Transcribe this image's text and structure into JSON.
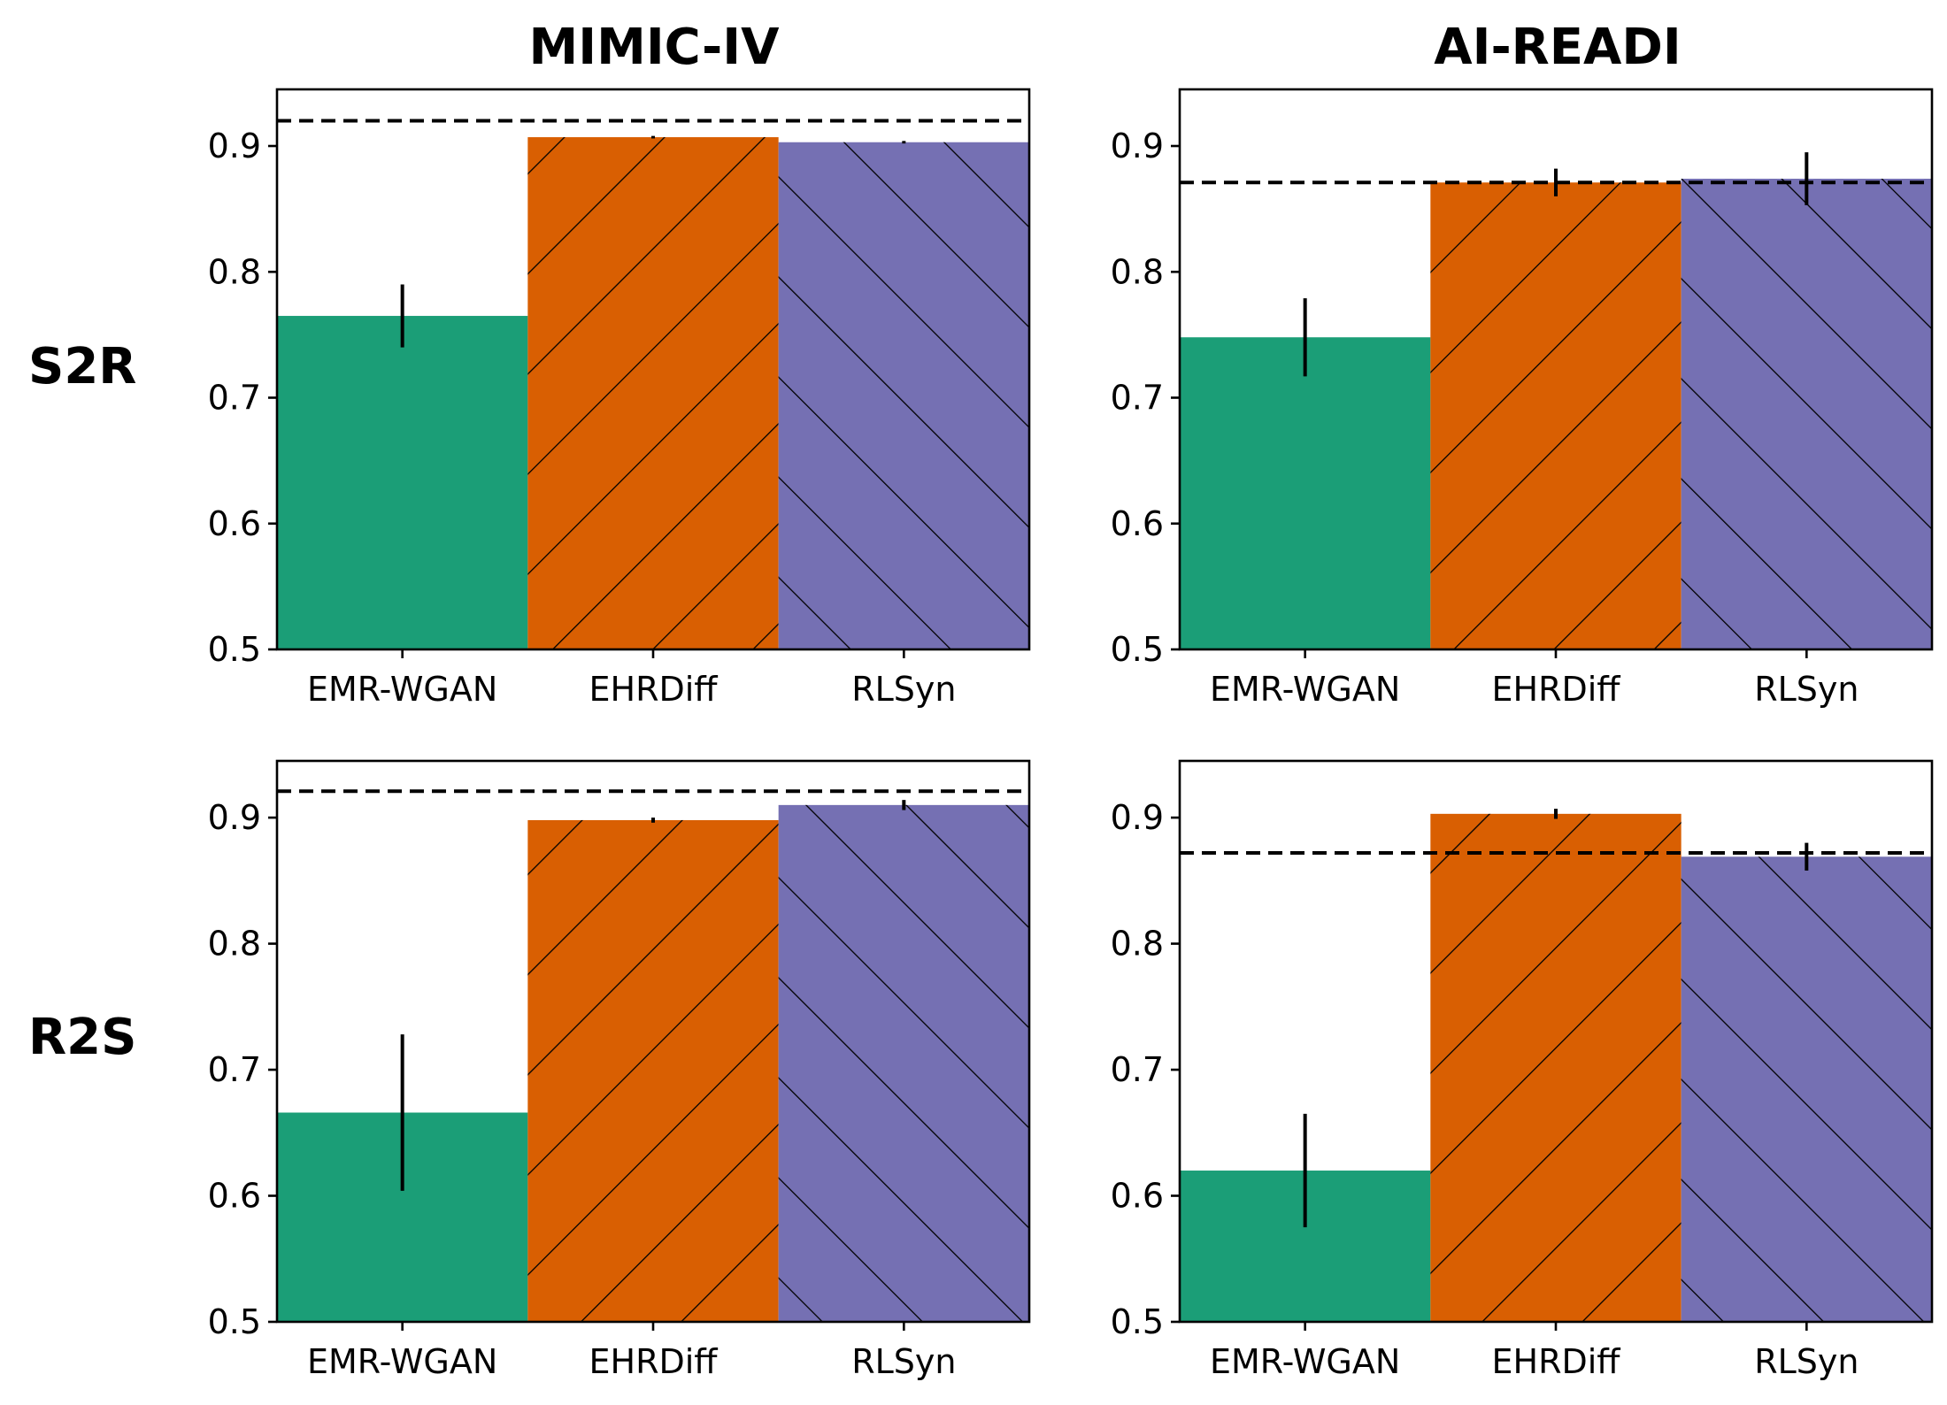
{
  "colors": {
    "EMR-WGAN": "#1b9e77",
    "EHRDiff": "#d95f02",
    "RLSyn": "#7570b3",
    "reference_line": "#000000",
    "errorbar": "#000000"
  },
  "hatches": {
    "EMR-WGAN": "none",
    "EHRDiff": "forward-diagonal",
    "RLSyn": "back-diagonal"
  },
  "col_titles": [
    "MIMIC-IV",
    "AI-READI"
  ],
  "row_labels": [
    "S2R",
    "R2S"
  ],
  "chart_data": [
    {
      "type": "bar",
      "row": "S2R",
      "title": "MIMIC-IV",
      "categories": [
        "EMR-WGAN",
        "EHRDiff",
        "RLSyn"
      ],
      "values": [
        0.765,
        0.907,
        0.903
      ],
      "error": [
        0.025,
        0.001,
        0.001
      ],
      "reference_line": 0.92,
      "ylim": [
        0.5,
        0.945
      ],
      "yticks": [
        0.5,
        0.6,
        0.7,
        0.8,
        0.9
      ],
      "ytick_labels": [
        "0.5",
        "0.6",
        "0.7",
        "0.8",
        "0.9"
      ]
    },
    {
      "type": "bar",
      "row": "S2R",
      "title": "AI-READI",
      "categories": [
        "EMR-WGAN",
        "EHRDiff",
        "RLSyn"
      ],
      "values": [
        0.748,
        0.871,
        0.874
      ],
      "error": [
        0.031,
        0.011,
        0.021
      ],
      "reference_line": 0.871,
      "ylim": [
        0.5,
        0.945
      ],
      "yticks": [
        0.5,
        0.6,
        0.7,
        0.8,
        0.9
      ],
      "ytick_labels": [
        "0.5",
        "0.6",
        "0.7",
        "0.8",
        "0.9"
      ]
    },
    {
      "type": "bar",
      "row": "R2S",
      "title": "MIMIC-IV",
      "categories": [
        "EMR-WGAN",
        "EHRDiff",
        "RLSyn"
      ],
      "values": [
        0.666,
        0.898,
        0.91
      ],
      "error": [
        0.062,
        0.002,
        0.004
      ],
      "reference_line": 0.921,
      "ylim": [
        0.5,
        0.945
      ],
      "yticks": [
        0.5,
        0.6,
        0.7,
        0.8,
        0.9
      ],
      "ytick_labels": [
        "0.5",
        "0.6",
        "0.7",
        "0.8",
        "0.9"
      ]
    },
    {
      "type": "bar",
      "row": "R2S",
      "title": "AI-READI",
      "categories": [
        "EMR-WGAN",
        "EHRDiff",
        "RLSyn"
      ],
      "values": [
        0.62,
        0.903,
        0.869
      ],
      "error": [
        0.045,
        0.004,
        0.011
      ],
      "reference_line": 0.872,
      "ylim": [
        0.5,
        0.945
      ],
      "yticks": [
        0.5,
        0.6,
        0.7,
        0.8,
        0.9
      ],
      "ytick_labels": [
        "0.5",
        "0.6",
        "0.7",
        "0.8",
        "0.9"
      ]
    }
  ]
}
